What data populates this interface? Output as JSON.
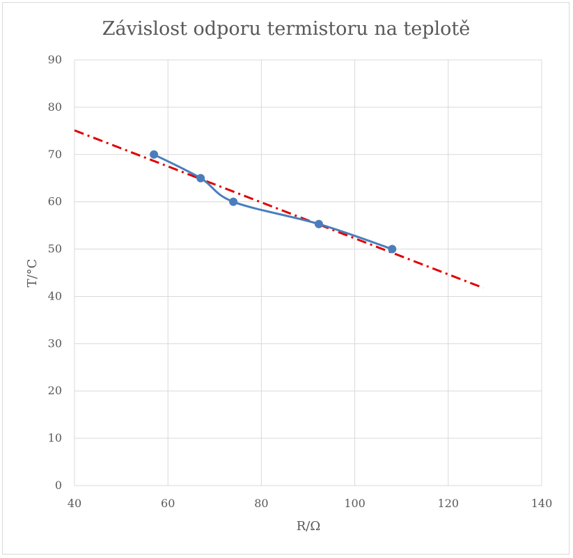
{
  "chart_data": {
    "type": "scatter",
    "title": "Závislost odporu termistoru na teplotě",
    "xlabel": "R/Ω",
    "ylabel": "T/°C",
    "xlim": [
      40,
      140
    ],
    "ylim": [
      0,
      90
    ],
    "x_ticks": [
      40,
      60,
      80,
      100,
      120,
      140
    ],
    "y_ticks": [
      0,
      10,
      20,
      30,
      40,
      50,
      60,
      70,
      80,
      90
    ],
    "x_tick_labels": [
      "40",
      "60",
      "80",
      "100",
      "120",
      "140"
    ],
    "y_tick_labels": [
      "0",
      "10",
      "20",
      "30",
      "40",
      "50",
      "60",
      "70",
      "80",
      "90"
    ],
    "grid": true,
    "series": [
      {
        "style": "smooth-line-markers",
        "color": "#4a7ebb",
        "points": [
          {
            "x": 57,
            "y": 70
          },
          {
            "x": 67,
            "y": 65
          },
          {
            "x": 74,
            "y": 60
          },
          {
            "x": 92.3,
            "y": 55.3
          },
          {
            "x": 108,
            "y": 50
          }
        ]
      },
      {
        "style": "dash-dot-trendline",
        "color": "#e00000",
        "points": [
          {
            "x": 40,
            "y": 75.1
          },
          {
            "x": 127.5,
            "y": 41.8
          }
        ]
      }
    ]
  }
}
